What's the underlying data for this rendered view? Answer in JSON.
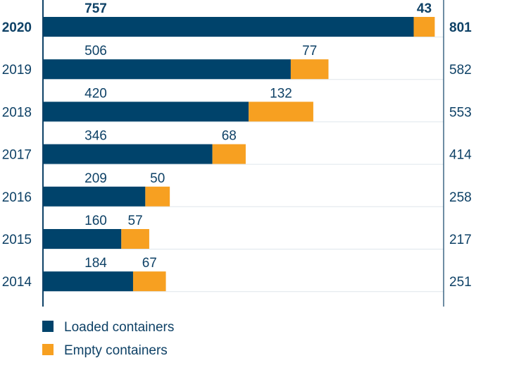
{
  "chart_data": {
    "type": "bar",
    "orientation": "horizontal",
    "stacked": true,
    "categories": [
      "2020",
      "2019",
      "2018",
      "2017",
      "2016",
      "2015",
      "2014"
    ],
    "series": [
      {
        "name": "Loaded containers",
        "values": [
          757,
          506,
          420,
          346,
          209,
          160,
          184
        ],
        "color": "#00436b"
      },
      {
        "name": "Empty containers",
        "values": [
          43,
          77,
          132,
          68,
          50,
          57,
          67
        ],
        "color": "#f7a021"
      }
    ],
    "totals": [
      801,
      582,
      553,
      414,
      258,
      217,
      251
    ],
    "highlight_category": "2020",
    "legend_position": "bottom-left",
    "grid": false,
    "xlim": [
      0,
      820
    ]
  }
}
